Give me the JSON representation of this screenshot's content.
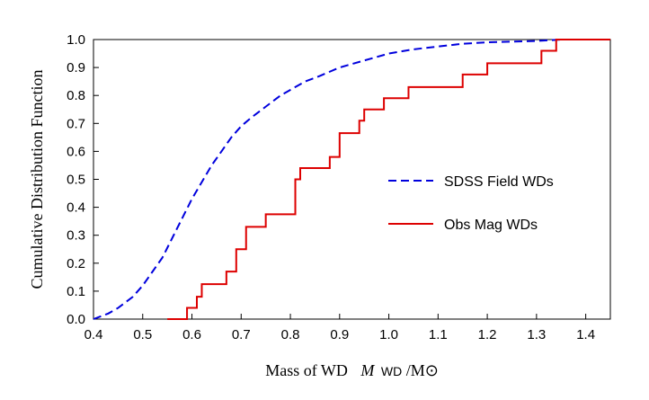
{
  "chart_data": {
    "type": "line",
    "title": "",
    "xlabel_prefix": "Mass of WD",
    "xlabel_var": "M",
    "xlabel_sub": "WD",
    "xlabel_suffix": "/M⊙",
    "ylabel": "Cumulative Distribution Function",
    "xlim": [
      0.4,
      1.45
    ],
    "ylim": [
      0.0,
      1.0
    ],
    "x_ticks": [
      "0.4",
      "0.5",
      "0.6",
      "0.7",
      "0.8",
      "0.9",
      "1.0",
      "1.1",
      "1.2",
      "1.3",
      "1.4"
    ],
    "y_ticks": [
      "0.0",
      "0.1",
      "0.2",
      "0.3",
      "0.4",
      "0.5",
      "0.6",
      "0.7",
      "0.8",
      "0.9",
      "1.0"
    ],
    "legend_position": "center-right",
    "series": [
      {
        "name": "SDSS Field WDs",
        "style": "dashed",
        "color": "#0000dd",
        "x": [
          0.4,
          0.43,
          0.45,
          0.48,
          0.5,
          0.52,
          0.54,
          0.56,
          0.58,
          0.6,
          0.62,
          0.64,
          0.66,
          0.68,
          0.7,
          0.72,
          0.75,
          0.78,
          0.8,
          0.83,
          0.86,
          0.9,
          0.95,
          1.0,
          1.05,
          1.1,
          1.15,
          1.2,
          1.3,
          1.35,
          1.45
        ],
        "y": [
          0.0,
          0.02,
          0.04,
          0.08,
          0.12,
          0.17,
          0.22,
          0.29,
          0.36,
          0.43,
          0.49,
          0.55,
          0.6,
          0.65,
          0.69,
          0.72,
          0.76,
          0.8,
          0.82,
          0.85,
          0.87,
          0.9,
          0.925,
          0.95,
          0.965,
          0.975,
          0.985,
          0.99,
          0.995,
          1.0,
          1.0
        ]
      },
      {
        "name": "Obs Mag WDs",
        "style": "step",
        "color": "#dd0000",
        "x": [
          0.55,
          0.59,
          0.61,
          0.62,
          0.67,
          0.69,
          0.71,
          0.75,
          0.81,
          0.82,
          0.88,
          0.9,
          0.94,
          0.95,
          0.99,
          1.04,
          1.15,
          1.2,
          1.31,
          1.34,
          1.45
        ],
        "y": [
          0.0,
          0.04,
          0.08,
          0.125,
          0.17,
          0.25,
          0.33,
          0.375,
          0.5,
          0.54,
          0.58,
          0.665,
          0.71,
          0.75,
          0.79,
          0.83,
          0.875,
          0.915,
          0.96,
          1.0,
          1.0
        ]
      }
    ]
  }
}
